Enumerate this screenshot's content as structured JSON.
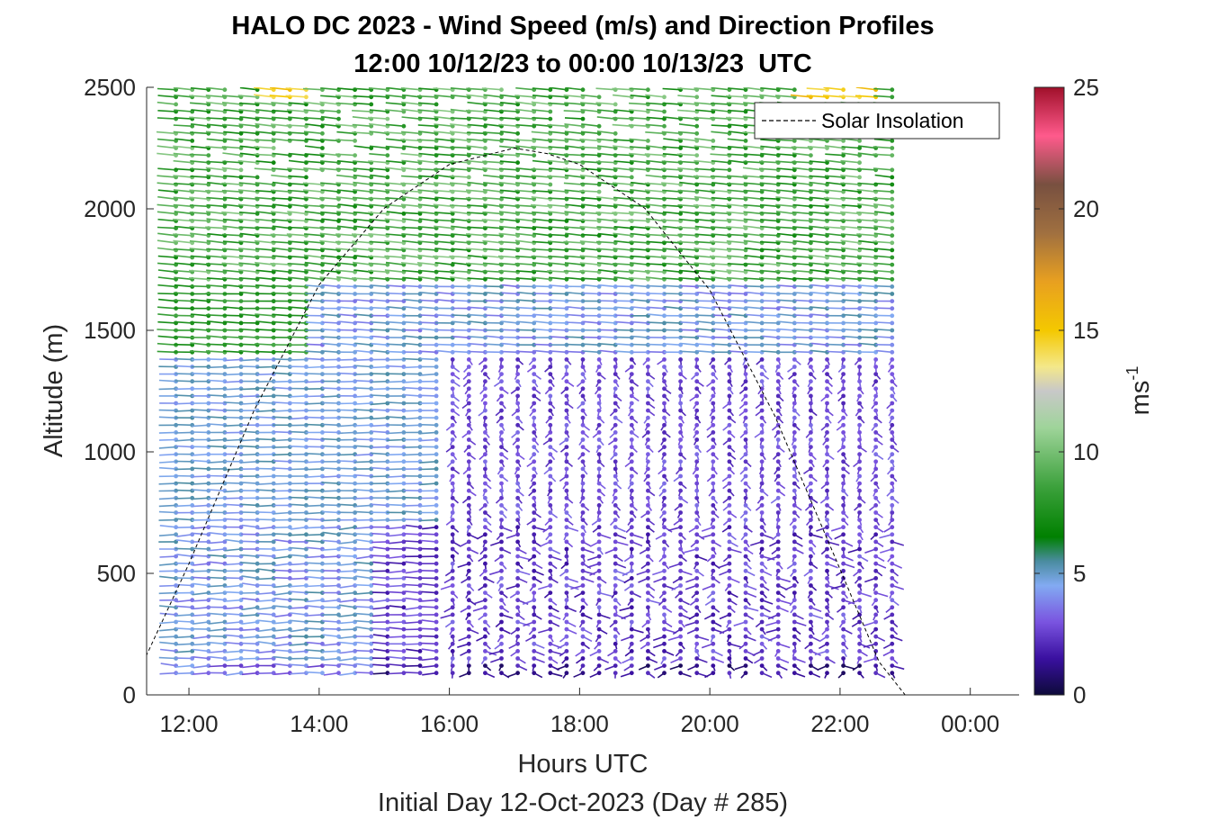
{
  "chart_data": {
    "type": "scatter",
    "title": "HALO DC 2023 - Wind Speed (m/s) and Direction Profiles",
    "subtitle": "12:00 10/12/23 to 00:00 10/13/23  UTC",
    "xlabel": "Hours UTC",
    "xlabel2": "Initial Day 12-Oct-2023 (Day # 285)",
    "ylabel": "Altitude (m)",
    "colorbar_label": "ms",
    "colorbar_label_exp": "-1",
    "x_ticks": [
      "12:00",
      "14:00",
      "16:00",
      "18:00",
      "20:00",
      "22:00",
      "00:00"
    ],
    "x_tick_hours": [
      12,
      14,
      16,
      18,
      20,
      22,
      24
    ],
    "xlim_hours": [
      11.35,
      24.75
    ],
    "y_ticks": [
      "0",
      "500",
      "1000",
      "1500",
      "2000",
      "2500"
    ],
    "ylim": [
      0,
      2500
    ],
    "colorbar_ticks": [
      "0",
      "5",
      "10",
      "15",
      "20",
      "25"
    ],
    "colorbar_lim": [
      0,
      25
    ],
    "legend": {
      "entry": "Solar Insolation",
      "location": "top-right",
      "style": "dashed black"
    },
    "profile_time_range_hours": [
      11.8,
      23.0
    ],
    "profile_interval_minutes": 15,
    "altitude_range_m": [
      90,
      2490
    ],
    "altitude_interval_m": 30,
    "wind_speed_regimes": [
      {
        "altitude_m": [
          0,
          700
        ],
        "speed_ms": [
          0.5,
          5
        ],
        "note": "light, variable"
      },
      {
        "altitude_m": [
          700,
          1400
        ],
        "speed_ms": [
          1,
          4
        ],
        "note": "weak, northerly after 16:00"
      },
      {
        "altitude_m": [
          1400,
          1700
        ],
        "speed_ms": [
          3,
          7
        ]
      },
      {
        "altitude_m": [
          1700,
          2500
        ],
        "speed_ms": [
          6,
          11
        ],
        "note": "westerly"
      },
      {
        "altitude_m": [
          2450,
          2500
        ],
        "speed_ms": [
          13,
          16
        ],
        "note": "peaks near 13:30 and 22:00"
      }
    ],
    "solar_insolation": {
      "x_hours": [
        11.3,
        12.0,
        13.0,
        14.0,
        15.0,
        16.0,
        17.0,
        17.5,
        18.0,
        19.0,
        20.0,
        21.0,
        22.0,
        22.6,
        23.0,
        24.75
      ],
      "y_relative": [
        0.06,
        0.24,
        0.52,
        0.75,
        0.89,
        0.97,
        1.0,
        0.99,
        0.97,
        0.89,
        0.74,
        0.51,
        0.23,
        0.06,
        0.0,
        0.0
      ]
    },
    "colormap_stops": [
      {
        "v": 0,
        "color": "#0d0a3a"
      },
      {
        "v": 1.5,
        "color": "#3a10a0"
      },
      {
        "v": 3,
        "color": "#7a54e0"
      },
      {
        "v": 4.5,
        "color": "#82aaf2"
      },
      {
        "v": 5.5,
        "color": "#4a8ca0"
      },
      {
        "v": 6.5,
        "color": "#008000"
      },
      {
        "v": 8.5,
        "color": "#3aa03a"
      },
      {
        "v": 11,
        "color": "#9fd49a"
      },
      {
        "v": 12.5,
        "color": "#c8c8c8"
      },
      {
        "v": 13.5,
        "color": "#f4e88a"
      },
      {
        "v": 15,
        "color": "#f4c800"
      },
      {
        "v": 17,
        "color": "#e8a020"
      },
      {
        "v": 19,
        "color": "#a07040"
      },
      {
        "v": 21,
        "color": "#785040"
      },
      {
        "v": 23,
        "color": "#ff5a8c"
      },
      {
        "v": 25,
        "color": "#a0102a"
      }
    ]
  }
}
